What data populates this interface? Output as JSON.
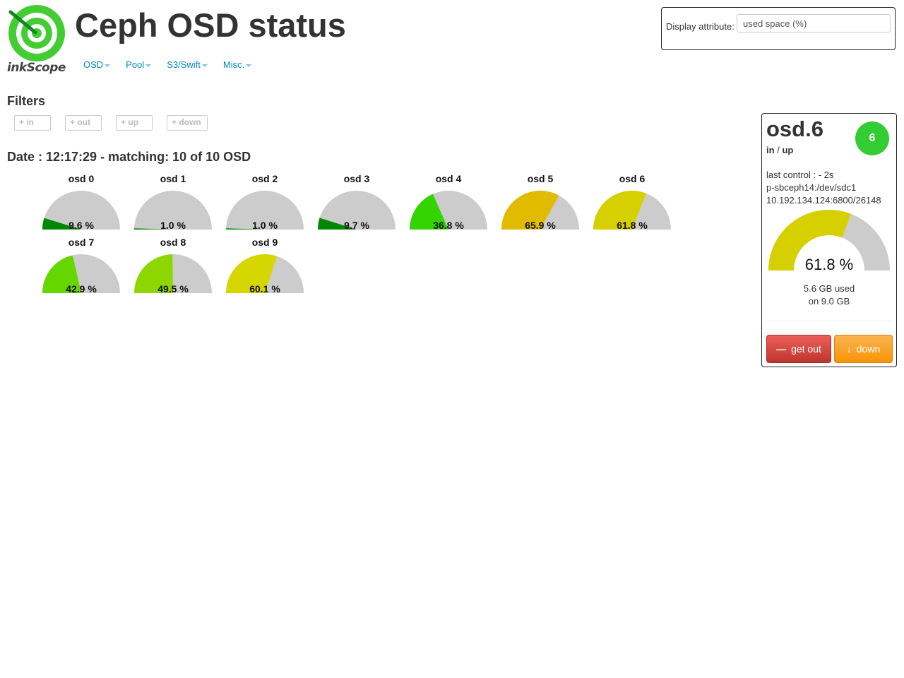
{
  "app": {
    "title": "Ceph OSD status",
    "logo_text": "inkScope"
  },
  "nav": [
    {
      "label": "OSD"
    },
    {
      "label": "Pool"
    },
    {
      "label": "S3/Swift"
    },
    {
      "label": "Misc."
    }
  ],
  "display": {
    "label": "Display attribute:",
    "value": "used space (%)"
  },
  "filters": {
    "title": "Filters",
    "buttons": [
      "+ in",
      "+ out",
      "+ up",
      "+ down"
    ]
  },
  "status": {
    "text": "Date : 12:17:29 - matching: 10 of 10 OSD"
  },
  "osds": [
    {
      "name": "osd 0",
      "pct": 9.6,
      "label": "9.6 %",
      "color": "#008800"
    },
    {
      "name": "osd 1",
      "pct": 1.0,
      "label": "1.0 %",
      "color": "#008800"
    },
    {
      "name": "osd 2",
      "pct": 1.0,
      "label": "1.0 %",
      "color": "#008800"
    },
    {
      "name": "osd 3",
      "pct": 9.7,
      "label": "9.7 %",
      "color": "#008800"
    },
    {
      "name": "osd 4",
      "pct": 36.8,
      "label": "36.8 %",
      "color": "#33d400"
    },
    {
      "name": "osd 5",
      "pct": 65.9,
      "label": "65.9 %",
      "color": "#e0bb00"
    },
    {
      "name": "osd 6",
      "pct": 61.8,
      "label": "61.8 %",
      "color": "#d6d000"
    },
    {
      "name": "osd 7",
      "pct": 42.9,
      "label": "42.9 %",
      "color": "#66d600"
    },
    {
      "name": "osd 8",
      "pct": 49.5,
      "label": "49.5 %",
      "color": "#8ed600"
    },
    {
      "name": "osd 9",
      "pct": 60.1,
      "label": "60.1 %",
      "color": "#d6d600"
    }
  ],
  "gauge_background": "#cccccc",
  "selected": {
    "name": "osd.6",
    "id": "6",
    "state_in": "in",
    "state_sep": "/",
    "state_up": "up",
    "last_control": "last control : - 2s",
    "device": "p-sbceph14:/dev/sdc1",
    "address": "10.192.134.124:6800/26148",
    "pct": 61.8,
    "pct_label": "61.8 %",
    "color": "#d6d000",
    "used": "5.6 GB used",
    "total": "on 9.0 GB",
    "badge_color": "#33cc33",
    "btn_out": "get out",
    "btn_down": "down"
  }
}
